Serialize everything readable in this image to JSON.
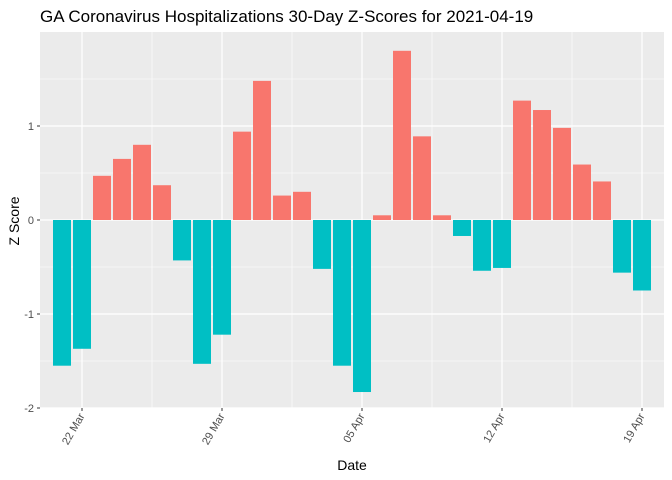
{
  "chart_data": {
    "type": "bar",
    "title": "GA Coronavirus Hospitalizations 30-Day Z-Scores for 2021-04-19",
    "xlabel": "Date",
    "ylabel": "Z Score",
    "ylim": [
      -2,
      2
    ],
    "grid": true,
    "legend": "none",
    "colors": {
      "positive": "#F8766D",
      "negative": "#00BFC4",
      "panel": "#EBEBEB",
      "grid": "#FFFFFF"
    },
    "y_ticks": [
      {
        "value": -2,
        "label": "-2"
      },
      {
        "value": -1,
        "label": "-1"
      },
      {
        "value": 0,
        "label": "0"
      },
      {
        "value": 1,
        "label": "1"
      }
    ],
    "x_ticks": [
      {
        "value": "2021-03-22",
        "label": "22 Mar"
      },
      {
        "value": "2021-03-29",
        "label": "29 Mar"
      },
      {
        "value": "2021-04-05",
        "label": "05 Apr"
      },
      {
        "value": "2021-04-12",
        "label": "12 Apr"
      },
      {
        "value": "2021-04-19",
        "label": "19 Apr"
      }
    ],
    "x": [
      "2021-03-21",
      "2021-03-22",
      "2021-03-23",
      "2021-03-24",
      "2021-03-25",
      "2021-03-26",
      "2021-03-27",
      "2021-03-28",
      "2021-03-29",
      "2021-03-30",
      "2021-03-31",
      "2021-04-01",
      "2021-04-02",
      "2021-04-03",
      "2021-04-04",
      "2021-04-05",
      "2021-04-06",
      "2021-04-07",
      "2021-04-08",
      "2021-04-09",
      "2021-04-10",
      "2021-04-11",
      "2021-04-12",
      "2021-04-13",
      "2021-04-14",
      "2021-04-15",
      "2021-04-16",
      "2021-04-17",
      "2021-04-18",
      "2021-04-19"
    ],
    "values": [
      -1.55,
      -1.37,
      0.47,
      0.65,
      0.8,
      0.37,
      -0.43,
      -1.53,
      -1.22,
      0.94,
      1.48,
      0.26,
      0.3,
      -0.52,
      -1.55,
      -1.83,
      0.05,
      1.8,
      0.89,
      0.05,
      -0.17,
      -0.54,
      -0.51,
      1.27,
      1.17,
      0.98,
      0.59,
      0.41,
      -0.56,
      -0.75
    ]
  }
}
